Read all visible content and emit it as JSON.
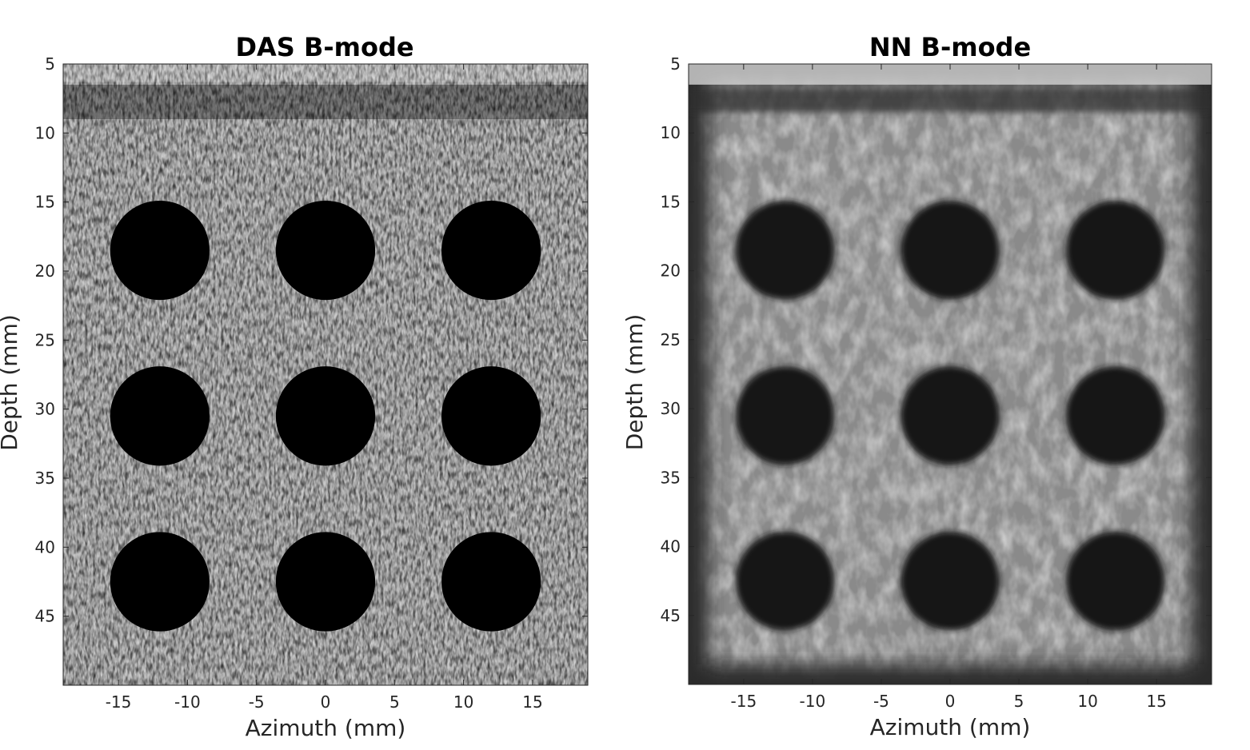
{
  "panels": [
    {
      "id": "das",
      "title": "DAS B-mode",
      "xlabel": "Azimuth (mm)",
      "ylabel": "Depth (mm)",
      "xlim": [
        -19,
        19
      ],
      "ylim": [
        5,
        50
      ],
      "xticks": [
        -15,
        -10,
        -5,
        0,
        5,
        10,
        15
      ],
      "yticks": [
        5,
        10,
        15,
        20,
        25,
        30,
        35,
        40,
        45
      ],
      "style": "speckle"
    },
    {
      "id": "nn",
      "title": "NN B-mode",
      "xlabel": "Azimuth (mm)",
      "ylabel": "Depth (mm)",
      "xlim": [
        -19,
        19
      ],
      "ylim": [
        5,
        50
      ],
      "xticks": [
        -15,
        -10,
        -5,
        0,
        5,
        10,
        15
      ],
      "yticks": [
        5,
        10,
        15,
        20,
        25,
        30,
        35,
        40,
        45
      ],
      "style": "smooth"
    }
  ],
  "cysts": {
    "x_mm": [
      -12,
      0,
      12
    ],
    "y_mm": [
      18.5,
      30.5,
      42.5
    ],
    "radius_mm": 3.6
  },
  "colors": {
    "background": "#ffffff",
    "axis": "#262626",
    "tick_text": "#262626",
    "title": "#000000"
  }
}
